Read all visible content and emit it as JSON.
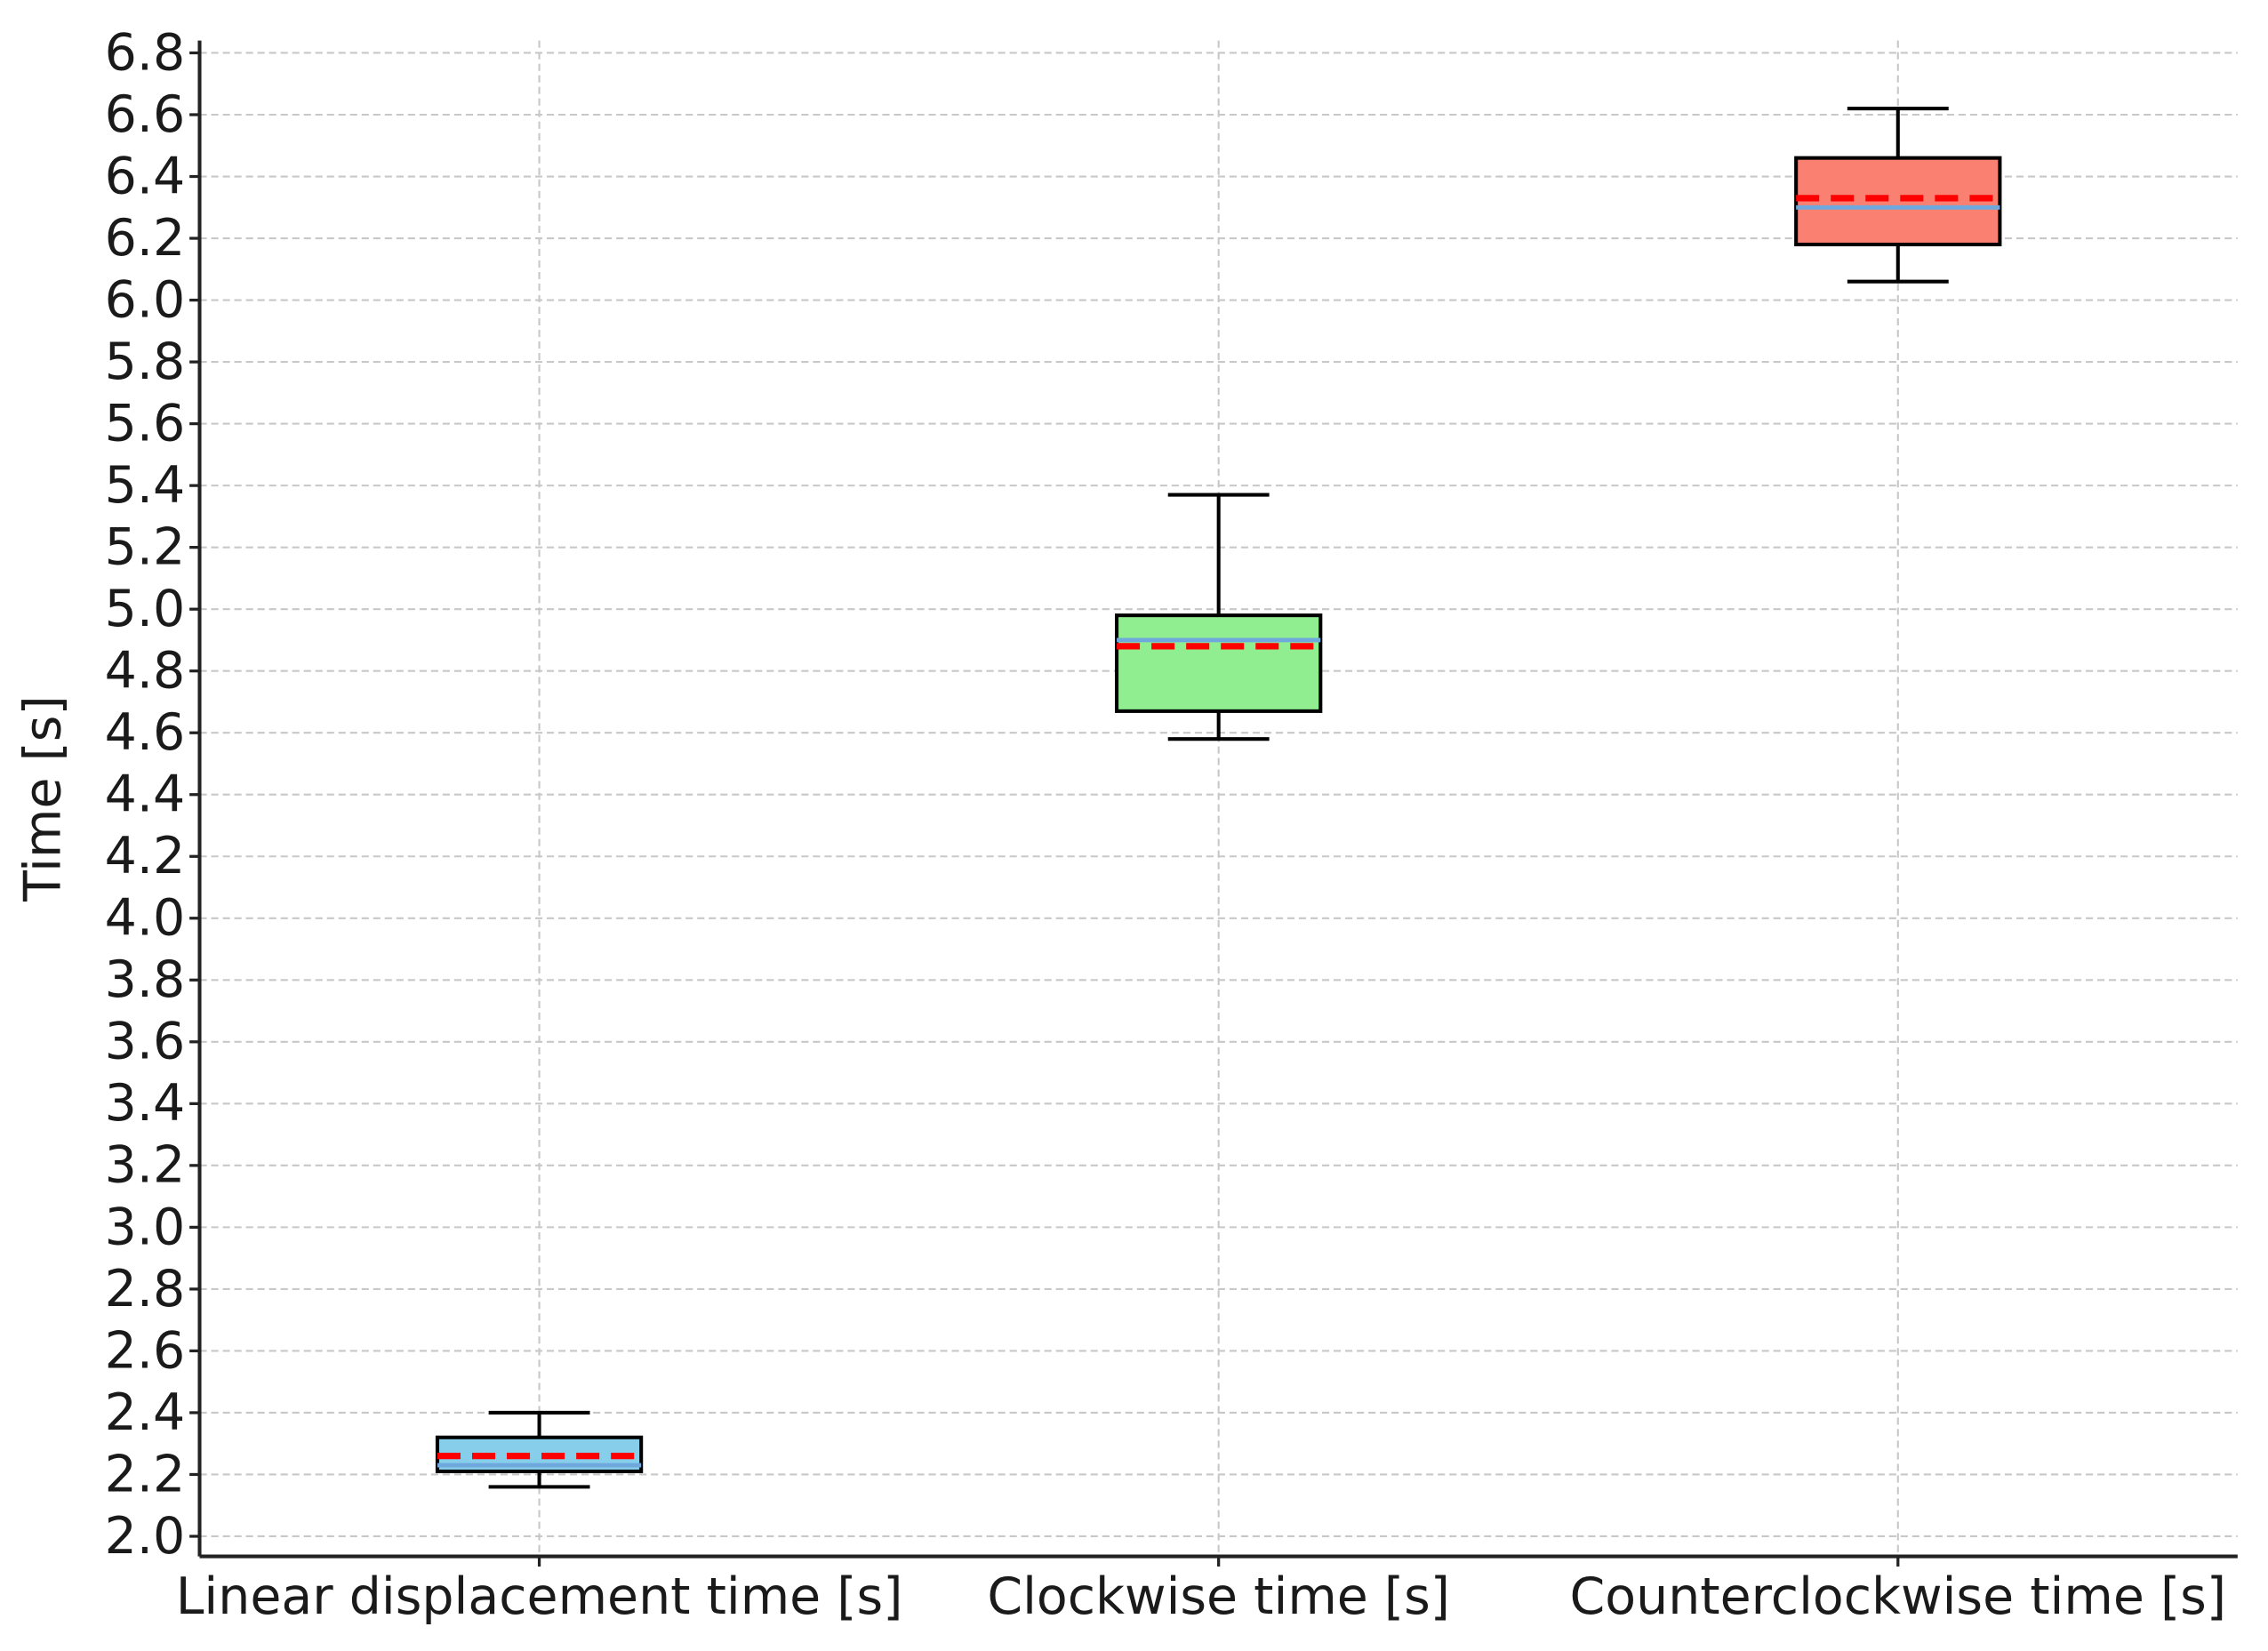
{
  "chart_data": {
    "type": "box",
    "y_label": "Time [s]",
    "categories": [
      "Linear displacement time [s]",
      "Clockwise time [s]",
      "Counterclockwise time [s]"
    ],
    "boxes": [
      {
        "whislo": 2.16,
        "q1": 2.21,
        "median": 2.23,
        "mean": 2.26,
        "q3": 2.32,
        "whishi": 2.4,
        "color": "#87ceeb"
      },
      {
        "whislo": 4.58,
        "q1": 4.67,
        "median": 4.9,
        "mean": 4.88,
        "q3": 4.98,
        "whishi": 5.37,
        "color": "#90ee90"
      },
      {
        "whislo": 6.06,
        "q1": 6.18,
        "median": 6.3,
        "mean": 6.33,
        "q3": 6.46,
        "whishi": 6.62,
        "color": "#fa8072"
      }
    ],
    "median_color": "#6fa8dc",
    "mean_color": "#ff0000",
    "ylim": [
      1.935,
      6.84
    ],
    "yticks": [
      {
        "value": 2.0,
        "label": "2.0"
      },
      {
        "value": 2.2,
        "label": "2.2"
      },
      {
        "value": 2.4,
        "label": "2.4"
      },
      {
        "value": 2.6,
        "label": "2.6"
      },
      {
        "value": 2.8,
        "label": "2.8"
      },
      {
        "value": 3.0,
        "label": "3.0"
      },
      {
        "value": 3.2,
        "label": "3.2"
      },
      {
        "value": 3.4,
        "label": "3.4"
      },
      {
        "value": 3.6,
        "label": "3.6"
      },
      {
        "value": 3.8,
        "label": "3.8"
      },
      {
        "value": 4.0,
        "label": "4.0"
      },
      {
        "value": 4.2,
        "label": "4.2"
      },
      {
        "value": 4.4,
        "label": "4.4"
      },
      {
        "value": 4.6,
        "label": "4.6"
      },
      {
        "value": 4.8,
        "label": "4.8"
      },
      {
        "value": 5.0,
        "label": "5.0"
      },
      {
        "value": 5.2,
        "label": "5.2"
      },
      {
        "value": 5.4,
        "label": "5.4"
      },
      {
        "value": 5.6,
        "label": "5.6"
      },
      {
        "value": 5.8,
        "label": "5.8"
      },
      {
        "value": 6.0,
        "label": "6.0"
      },
      {
        "value": 6.2,
        "label": "6.2"
      },
      {
        "value": 6.4,
        "label": "6.4"
      },
      {
        "value": 6.6,
        "label": "6.6"
      },
      {
        "value": 6.8,
        "label": "6.8"
      }
    ],
    "grid": true
  }
}
